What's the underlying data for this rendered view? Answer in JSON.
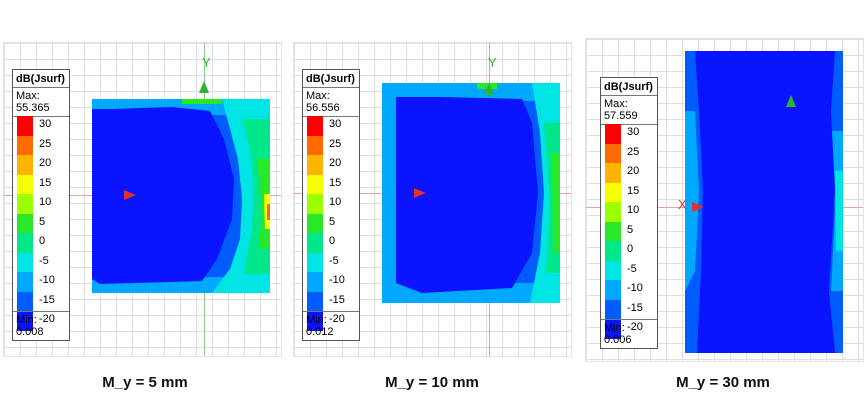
{
  "legend_colors": [
    "#ff0000",
    "#ff6a00",
    "#ffb400",
    "#f5ff00",
    "#9cff00",
    "#28e828",
    "#00e68a",
    "#00e4e4",
    "#00a8ff",
    "#005cff",
    "#0a14ff"
  ],
  "panels": [
    {
      "legend": {
        "title": "dB(Jsurf)",
        "max": "Max: 55.365",
        "min": "Min:  0.008",
        "ticks": [
          "30",
          "25",
          "20",
          "15",
          "10",
          "5",
          "0",
          "-5",
          "-10",
          "-15",
          "-20"
        ]
      },
      "axes": {
        "y": "Y",
        "x": ""
      },
      "caption": "M_y = 5 mm"
    },
    {
      "legend": {
        "title": "dB(Jsurf)",
        "max": "Max: 56.556",
        "min": "Min:  0.012",
        "ticks": [
          "30",
          "25",
          "20",
          "15",
          "10",
          "5",
          "0",
          "-5",
          "-10",
          "-15",
          "-20"
        ]
      },
      "axes": {
        "y": "Y",
        "x": ""
      },
      "caption": "M_y = 10 mm"
    },
    {
      "legend": {
        "title": "dB(Jsurf)",
        "max": "Max: 57.559",
        "min": "Min:  0.006",
        "ticks": [
          "30",
          "25",
          "20",
          "15",
          "10",
          "5",
          "0",
          "-5",
          "-10",
          "-15",
          "-20"
        ]
      },
      "axes": {
        "y": "",
        "x": "X"
      },
      "caption": "M_y = 30 mm"
    }
  ]
}
